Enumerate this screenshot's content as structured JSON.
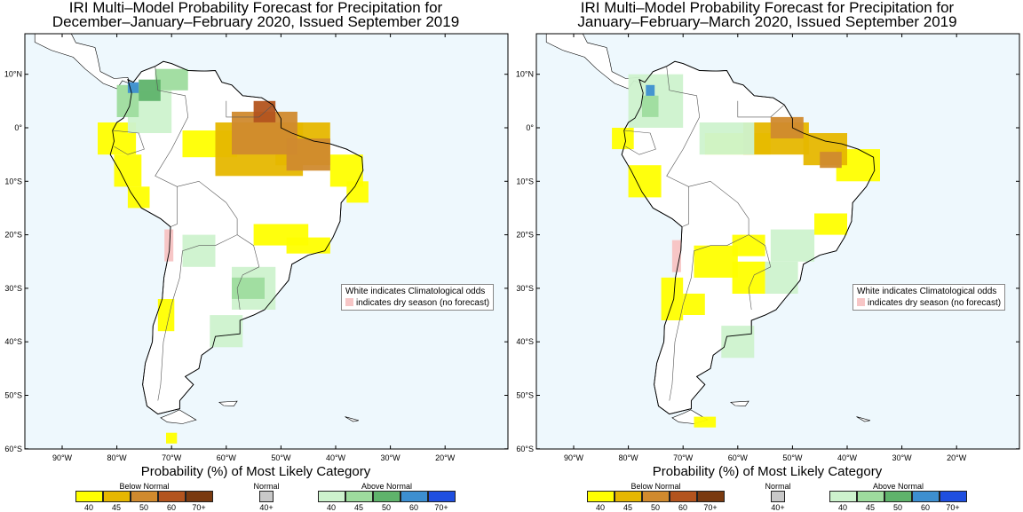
{
  "panels": [
    {
      "title_line1": "IRI Multi–Model Probability Forecast for Precipitation for",
      "title_line2": "December–January–February 2020, Issued September 2019",
      "note_line1": "White indicates Climatological odds",
      "note_line2": "indicates dry season (no forecast)"
    },
    {
      "title_line1": "IRI Multi–Model Probability Forecast for Precipitation for",
      "title_line2": "January–February–March 2020, Issued September 2019",
      "note_line1": "White indicates Climatological odds",
      "note_line2": "indicates dry season (no forecast)"
    }
  ],
  "lat_labels": [
    "10°N",
    "0°",
    "10°S",
    "20°S",
    "30°S",
    "40°S",
    "50°S",
    "60°S"
  ],
  "lon_labels": [
    "90°W",
    "80°W",
    "70°W",
    "60°W",
    "50°W",
    "40°W",
    "30°W",
    "20°W"
  ],
  "legend": {
    "title": "Probability (%) of Most Likely Category",
    "below_label": "Below Normal",
    "normal_label": "Normal",
    "above_label": "Above Normal",
    "below_ticks": [
      "40",
      "45",
      "50",
      "60",
      "70+"
    ],
    "normal_tick": "40+",
    "above_ticks": [
      "40",
      "45",
      "50",
      "60",
      "70+"
    ],
    "below_colors": [
      "#ffff00",
      "#e6b700",
      "#d08a2e",
      "#b3541e",
      "#7a3a10"
    ],
    "normal_color": "#c8c8c8",
    "above_colors": [
      "#cdf2cd",
      "#9edc9e",
      "#5fb36b",
      "#3d8fd0",
      "#1f4fe0"
    ]
  },
  "colors": {
    "ocean": "#eef8fd",
    "land": "#ffffff",
    "dry_season": "#f7c6c6"
  }
}
